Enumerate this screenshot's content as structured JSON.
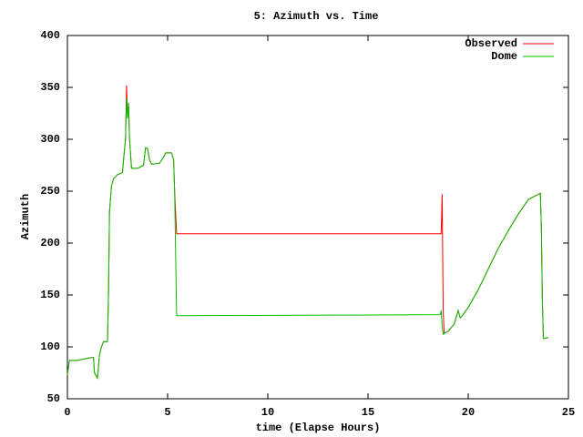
{
  "chart_data": {
    "type": "line",
    "title": "5: Azimuth vs. Time",
    "x_label": "time (Elapse Hours)",
    "y_label": "Azimuth",
    "x": [
      0,
      0.1,
      0.5,
      1.0,
      1.3,
      1.35,
      1.5,
      1.6,
      1.7,
      1.8,
      2.0,
      2.05,
      2.1,
      2.2,
      2.3,
      2.5,
      2.75,
      2.8,
      2.9,
      2.95,
      3.0,
      3.05,
      3.1,
      3.2,
      3.5,
      3.8,
      3.9,
      4.0,
      4.1,
      4.2,
      4.6,
      4.8,
      4.9,
      5.2,
      5.3,
      5.35,
      5.45,
      18.6,
      18.65,
      18.7,
      18.75,
      18.8,
      19.0,
      19.3,
      19.5,
      19.6,
      19.7,
      20.0,
      20.5,
      21.0,
      21.5,
      22.0,
      22.5,
      23.0,
      23.4,
      23.6,
      23.65,
      23.7,
      23.75,
      24.0
    ],
    "series": [
      {
        "name": "Observed",
        "color": "#ff0000",
        "values": [
          73,
          87,
          87,
          89,
          90,
          75,
          70,
          92,
          100,
          105,
          105,
          150,
          230,
          255,
          262,
          266,
          268,
          280,
          300,
          352,
          320,
          335,
          300,
          272,
          272,
          275,
          292,
          291,
          280,
          276,
          277,
          283,
          287,
          287,
          280,
          250,
          209,
          209,
          209,
          247,
          135,
          113,
          115,
          122,
          135,
          128,
          130,
          138,
          155,
          175,
          195,
          212,
          228,
          242,
          246,
          248,
          215,
          145,
          108,
          109
        ]
      },
      {
        "name": "Dome",
        "color": "#00c000",
        "values": [
          73,
          87,
          87,
          89,
          90,
          75,
          70,
          92,
          100,
          105,
          105,
          150,
          230,
          255,
          262,
          266,
          268,
          280,
          300,
          340,
          320,
          335,
          300,
          272,
          272,
          275,
          292,
          291,
          280,
          276,
          277,
          283,
          287,
          287,
          280,
          250,
          130,
          131,
          135,
          120,
          112,
          113,
          115,
          122,
          135,
          128,
          130,
          138,
          155,
          175,
          195,
          212,
          228,
          242,
          246,
          248,
          215,
          145,
          108,
          109
        ]
      }
    ],
    "xlim": [
      0,
      25
    ],
    "xticks": [
      0,
      5,
      10,
      15,
      20,
      25
    ],
    "ylim": [
      50,
      400
    ],
    "yticks": [
      50,
      100,
      150,
      200,
      250,
      300,
      350,
      400
    ],
    "legend": "top-right"
  }
}
